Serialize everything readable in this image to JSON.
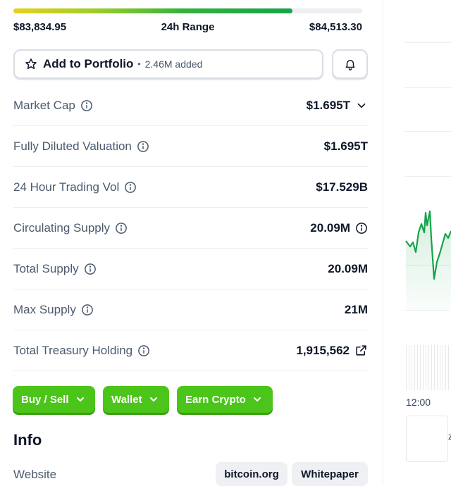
{
  "range": {
    "low": "$83,834.95",
    "label": "24h Range",
    "high": "$84,513.30",
    "position_fraction": 0.8
  },
  "portfolio": {
    "label": "Add to Portfolio",
    "separator": "•",
    "added": "2.46M added"
  },
  "stats": [
    {
      "label": "Market Cap",
      "value": "$1.695T"
    },
    {
      "label": "Fully Diluted Valuation",
      "value": "$1.695T"
    },
    {
      "label": "24 Hour Trading Vol",
      "value": "$17.529B"
    },
    {
      "label": "Circulating Supply",
      "value": "20.09M"
    },
    {
      "label": "Total Supply",
      "value": "20.09M"
    },
    {
      "label": "Max Supply",
      "value": "21M"
    },
    {
      "label": "Total Treasury Holding",
      "value": "1,915,562"
    }
  ],
  "actions": {
    "buy_sell": "Buy / Sell",
    "wallet": "Wallet",
    "earn": "Earn Crypto"
  },
  "info": {
    "heading": "Info",
    "website_label": "Website",
    "links": [
      "bitcoin.org",
      "Whitepaper"
    ]
  },
  "chart_side": {
    "time_label": "12:00",
    "edge_glyph": "z"
  },
  "colors": {
    "accent_green": "#4cc51a",
    "line_green": "#16a34a",
    "text_muted": "#4b5a6e"
  },
  "icons": {
    "star": "star-icon",
    "bell": "bell-icon",
    "info": "info-icon",
    "chevron": "chevron-down-icon",
    "external": "external-link-icon"
  }
}
